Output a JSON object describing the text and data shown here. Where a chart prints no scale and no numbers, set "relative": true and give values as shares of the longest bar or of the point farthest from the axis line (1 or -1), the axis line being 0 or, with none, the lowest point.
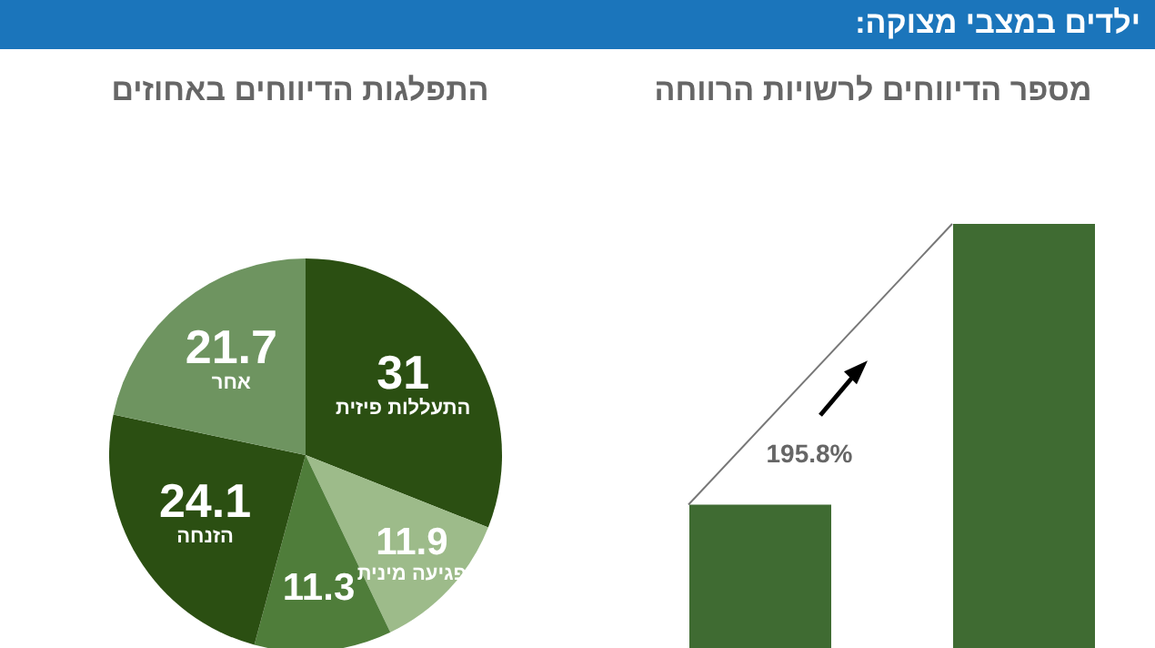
{
  "chart_data": [
    {
      "type": "bar",
      "title": "ילדים במצבי מצוקה:",
      "subtitle": "מספר הדיווחים לרשויות הרווחה",
      "categories": [
        null,
        null
      ],
      "values": [
        0.338,
        1
      ],
      "color": "#3f6b32",
      "relative": true,
      "annotations": [
        "195.8%"
      ]
    },
    {
      "type": "pie",
      "title": "התפלגות הדיווחים באחוזים",
      "categories": [
        "התעללות פיזית",
        "פגיעה מינית",
        null,
        "הזנחה",
        "אחר"
      ],
      "values": [
        31,
        11.9,
        11.3,
        24.1,
        21.7
      ],
      "colors": [
        "#2b4f12",
        "#9dbb8a",
        "#4f7d3a",
        "#2b4f12",
        "#6e9460"
      ],
      "data_labels": true
    }
  ]
}
